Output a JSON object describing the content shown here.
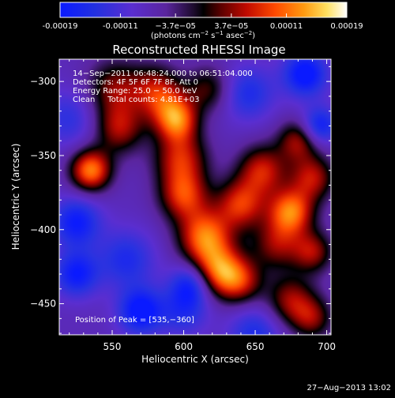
{
  "colorbar": {
    "tick_labels": [
      "-0.00019",
      "-0.00011",
      "−3.7e−05",
      "3.7e−05",
      "0.00011",
      "0.00019"
    ],
    "tick_values": [
      -0.00019,
      -0.00011,
      -3.7e-05,
      3.7e-05,
      0.00011,
      0.00019
    ],
    "range": [
      -0.00019,
      0.00019
    ],
    "unit_label_prefix": "(photons cm",
    "unit_sup1": "−2",
    "unit_label_mid": " s",
    "unit_sup2": "−1",
    "unit_label_mid2": " asec",
    "unit_sup3": "−2",
    "unit_label_suffix": ")"
  },
  "chart_data": {
    "type": "heatmap",
    "title": "Reconstructed RHESSI Image",
    "xlabel": "Heliocentric X (arcsec)",
    "ylabel": "Heliocentric Y (arcsec)",
    "xlim": [
      513,
      703
    ],
    "ylim": [
      -471,
      -285
    ],
    "xticks": [
      550,
      600,
      650,
      700
    ],
    "xtick_labels": [
      "550",
      "600",
      "650",
      "700"
    ],
    "yticks": [
      -300,
      -350,
      -400,
      -450
    ],
    "ytick_labels": [
      "−300",
      "−350",
      "−400",
      "−450"
    ],
    "annotations": [
      "14−Sep−2011 06:48:24.000 to 06:51:04.000",
      "Detectors: 4F 5F 6F 7F 8F, Att 0",
      "Energy Range: 25.0 − 50.0 keV",
      "Clean     Total counts: 4.81E+03"
    ],
    "peak_label": "Position of Peak = [535,−360]",
    "peak": [
      535,
      -360
    ],
    "colormap": "rhessi-bipolar (blue-purple-black-red-orange-yellow-white)",
    "sources": [
      {
        "x": 535,
        "y": -360,
        "amp": 1.0,
        "w": 10
      },
      {
        "x": 552,
        "y": -305,
        "amp": 0.55,
        "w": 14
      },
      {
        "x": 555,
        "y": -332,
        "amp": 0.6,
        "w": 12
      },
      {
        "x": 590,
        "y": -318,
        "amp": 0.5,
        "w": 12
      },
      {
        "x": 598,
        "y": -352,
        "amp": 0.7,
        "w": 13
      },
      {
        "x": 596,
        "y": -327,
        "amp": 0.65,
        "w": 10
      },
      {
        "x": 600,
        "y": -377,
        "amp": 0.75,
        "w": 12
      },
      {
        "x": 615,
        "y": -405,
        "amp": 0.95,
        "w": 13
      },
      {
        "x": 625,
        "y": -428,
        "amp": 0.85,
        "w": 12
      },
      {
        "x": 640,
        "y": -383,
        "amp": 0.75,
        "w": 12
      },
      {
        "x": 655,
        "y": -360,
        "amp": 0.7,
        "w": 12
      },
      {
        "x": 675,
        "y": -388,
        "amp": 0.95,
        "w": 11
      },
      {
        "x": 690,
        "y": -365,
        "amp": 0.65,
        "w": 11
      },
      {
        "x": 680,
        "y": -340,
        "amp": 0.6,
        "w": 10
      },
      {
        "x": 665,
        "y": -410,
        "amp": 0.55,
        "w": 12
      },
      {
        "x": 690,
        "y": -415,
        "amp": 0.6,
        "w": 10
      },
      {
        "x": 675,
        "y": -448,
        "amp": 0.6,
        "w": 12
      },
      {
        "x": 690,
        "y": -460,
        "amp": 0.5,
        "w": 10
      },
      {
        "x": 640,
        "y": -435,
        "amp": 0.6,
        "w": 11
      },
      {
        "x": 580,
        "y": -305,
        "amp": 0.5,
        "w": 12
      },
      {
        "x": 618,
        "y": -305,
        "amp": 0.45,
        "w": 11
      },
      {
        "x": 570,
        "y": -455,
        "amp": -0.7,
        "w": 11
      },
      {
        "x": 525,
        "y": -430,
        "amp": -0.6,
        "w": 11
      },
      {
        "x": 525,
        "y": -395,
        "amp": -0.6,
        "w": 12
      },
      {
        "x": 685,
        "y": -295,
        "amp": -0.7,
        "w": 11
      },
      {
        "x": 695,
        "y": -330,
        "amp": -0.6,
        "w": 9
      },
      {
        "x": 645,
        "y": -308,
        "amp": -0.45,
        "w": 13
      },
      {
        "x": 560,
        "y": -420,
        "amp": -0.45,
        "w": 14
      },
      {
        "x": 650,
        "y": -470,
        "amp": -0.45,
        "w": 13
      },
      {
        "x": 600,
        "y": -455,
        "amp": -0.4,
        "w": 12
      },
      {
        "x": 605,
        "y": -437,
        "amp": -0.55,
        "w": 10
      },
      {
        "x": 520,
        "y": -325,
        "amp": -0.35,
        "w": 14
      }
    ]
  },
  "footer": {
    "timestamp": "27−Aug−2013 13:02"
  }
}
